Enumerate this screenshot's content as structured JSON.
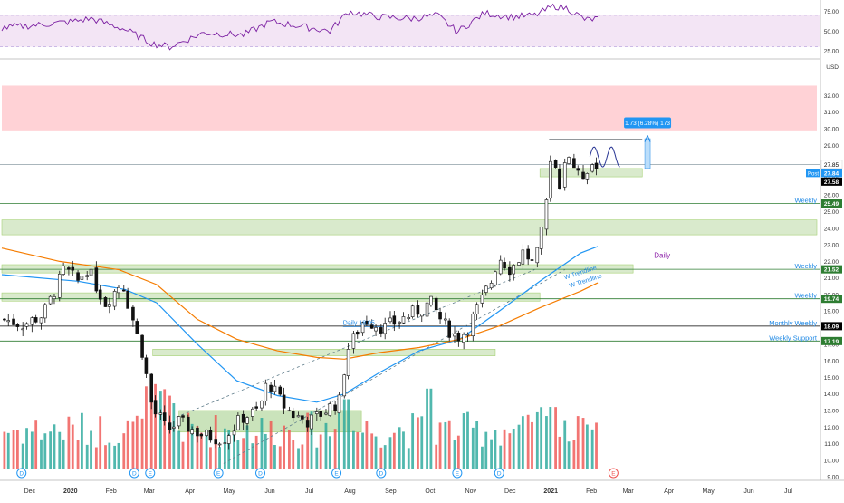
{
  "chart_data": {
    "type": "candlestick",
    "price_axis": {
      "unit_label": "USD",
      "ylim": [
        9.5,
        33.5
      ],
      "scale": "linear",
      "ticks": [
        "32.00",
        "31.00",
        "30.00",
        "29.00",
        "28.00",
        "27.00",
        "26.00",
        "25.00",
        "24.00",
        "23.00",
        "22.00",
        "21.00",
        "20.00",
        "19.00",
        "18.00",
        "17.00",
        "16.00",
        "15.00",
        "14.00",
        "13.00",
        "12.00",
        "11.00",
        "10.00",
        "9.00"
      ],
      "tick_values": [
        32,
        31,
        30,
        29,
        28,
        27,
        26,
        25,
        24,
        23,
        22,
        21,
        20,
        19,
        18,
        17,
        16,
        15,
        14,
        13,
        12,
        11,
        10,
        9
      ]
    },
    "rsi_axis": {
      "ticks": [
        "75.00",
        "50.00",
        "25.00"
      ],
      "tick_values": [
        75,
        50,
        25
      ],
      "ylim": [
        18,
        85
      ],
      "band": [
        30,
        70
      ]
    },
    "time_axis": {
      "start": "2019-11-18",
      "end": "2021-07-31",
      "labels": [
        "Dec",
        "2020",
        "Feb",
        "Mar",
        "Apr",
        "May",
        "Jun",
        "Jul",
        "Aug",
        "Sep",
        "Oct",
        "Nov",
        "Dec",
        "2021",
        "Feb",
        "Mar",
        "Apr",
        "May",
        "Jun",
        "Jul"
      ],
      "label_dates": [
        "2019-12-01",
        "2020-01-01",
        "2020-02-01",
        "2020-03-01",
        "2020-04-01",
        "2020-05-01",
        "2020-06-01",
        "2020-07-01",
        "2020-08-01",
        "2020-09-01",
        "2020-10-01",
        "2020-11-01",
        "2020-12-01",
        "2021-01-01",
        "2021-02-01",
        "2021-03-01",
        "2021-04-01",
        "2021-05-01",
        "2021-06-01",
        "2021-07-01"
      ],
      "bold_labels": [
        "2020",
        "2021"
      ]
    },
    "price_path": {
      "dates": [
        "2019-11-20",
        "2019-12-05",
        "2019-12-20",
        "2020-01-05",
        "2020-01-15",
        "2020-01-22",
        "2020-02-05",
        "2020-02-18",
        "2020-02-26",
        "2020-03-05",
        "2020-03-12",
        "2020-03-18",
        "2020-03-23",
        "2020-04-01",
        "2020-04-20",
        "2020-05-05",
        "2020-05-20",
        "2020-06-01",
        "2020-06-08",
        "2020-06-18",
        "2020-06-26",
        "2020-07-10",
        "2020-07-25",
        "2020-08-03",
        "2020-08-06",
        "2020-08-20",
        "2020-09-05",
        "2020-09-25",
        "2020-10-10",
        "2020-10-20",
        "2020-10-30",
        "2020-11-06",
        "2020-11-15",
        "2020-11-25",
        "2020-12-01",
        "2020-12-10",
        "2020-12-20",
        "2020-12-28",
        "2021-01-05",
        "2021-01-08",
        "2021-01-12",
        "2021-01-15",
        "2021-01-22",
        "2021-02-01",
        "2021-02-05",
        "2021-02-10",
        "2021-02-14"
      ],
      "values": [
        18.5,
        18.2,
        18.8,
        21.5,
        20.8,
        21.6,
        19.5,
        20.8,
        18.5,
        16.3,
        13.0,
        12.5,
        11.8,
        12.3,
        11.5,
        11.3,
        12.6,
        13.0,
        14.8,
        13.5,
        12.8,
        12.3,
        13.2,
        13.6,
        16.4,
        18.5,
        18.0,
        18.8,
        19.5,
        18.2,
        17.4,
        17.8,
        19.2,
        20.8,
        22.3,
        21.5,
        22.6,
        21.7,
        24.5,
        27.0,
        28.9,
        26.3,
        28.7,
        26.8,
        27.6,
        27.9,
        27.6
      ]
    },
    "series": [
      {
        "name": "",
        "kind": "ma-short",
        "color": "#2196f3",
        "dates": [
          "2019-11-18",
          "2020-01-15",
          "2020-02-20",
          "2020-03-15",
          "2020-04-15",
          "2020-05-15",
          "2020-06-15",
          "2020-07-15",
          "2020-08-05",
          "2020-09-01",
          "2020-10-01",
          "2020-11-01",
          "2020-12-01",
          "2021-01-01",
          "2021-02-01",
          "2021-02-14"
        ],
        "values": [
          21.2,
          20.8,
          20.3,
          19.5,
          17.0,
          14.8,
          13.9,
          13.5,
          14.0,
          15.3,
          16.6,
          17.3,
          19.0,
          20.8,
          22.5,
          22.9
        ]
      },
      {
        "name": "",
        "kind": "ma-long",
        "color": "#f57c00",
        "dates": [
          "2019-11-18",
          "2020-01-01",
          "2020-02-15",
          "2020-03-15",
          "2020-04-15",
          "2020-05-15",
          "2020-06-15",
          "2020-07-15",
          "2020-08-05",
          "2020-09-01",
          "2020-10-01",
          "2020-11-01",
          "2020-12-01",
          "2021-01-01",
          "2021-02-01",
          "2021-02-14"
        ],
        "values": [
          22.8,
          22.0,
          21.5,
          20.6,
          18.5,
          17.3,
          16.6,
          16.2,
          16.1,
          16.5,
          16.8,
          17.3,
          18.1,
          19.2,
          20.2,
          20.7
        ]
      },
      {
        "name": "",
        "kind": "rsi",
        "color": "#7b1fa2",
        "dates": [
          "2019-11-18",
          "2019-12-10",
          "2020-01-10",
          "2020-01-25",
          "2020-02-20",
          "2020-03-12",
          "2020-03-25",
          "2020-04-20",
          "2020-05-20",
          "2020-06-10",
          "2020-06-30",
          "2020-07-25",
          "2020-08-08",
          "2020-09-01",
          "2020-09-25",
          "2020-10-15",
          "2020-10-30",
          "2020-11-20",
          "2020-12-10",
          "2020-12-28",
          "2021-01-12",
          "2021-01-22",
          "2021-02-05",
          "2021-02-14"
        ],
        "values": [
          54,
          57,
          62,
          66,
          52,
          34,
          30,
          48,
          45,
          62,
          57,
          50,
          75,
          68,
          66,
          70,
          49,
          73,
          68,
          70,
          82,
          79,
          64,
          66
        ]
      }
    ],
    "horizontal_levels": [
      {
        "value": 25.49,
        "label": "Weekly",
        "color": "#2e7d32"
      },
      {
        "value": 21.52,
        "label": "Weekly",
        "color": "#2e7d32"
      },
      {
        "value": 19.74,
        "label": "Weekly",
        "color": "#2e7d32"
      },
      {
        "value": 18.09,
        "label": "Monthly Weekly",
        "color": "#000000"
      },
      {
        "value": 17.19,
        "label": "Weekly Support",
        "color": "#2e7d32"
      }
    ],
    "zones": [
      {
        "from": "2019-11-18",
        "to": "2021-07-31",
        "low": 29.9,
        "high": 32.6,
        "kind": "resistance",
        "color": "#ffcdd2"
      },
      {
        "from": "2019-11-18",
        "to": "2021-07-31",
        "low": 23.6,
        "high": 24.5,
        "kind": "support",
        "color": "#d5e8c7"
      },
      {
        "from": "2019-11-18",
        "to": "2021-03-13",
        "low": 21.3,
        "high": 21.8,
        "kind": "support",
        "color": "#d5e8c7"
      },
      {
        "from": "2019-11-18",
        "to": "2021-01-01",
        "low": 19.6,
        "high": 20.1,
        "kind": "support",
        "color": "#d5e8c7"
      },
      {
        "from": "2020-03-12",
        "to": "2020-11-28",
        "low": 16.3,
        "high": 16.7,
        "kind": "support",
        "color": "#d5e8c7"
      },
      {
        "from": "2020-04-01",
        "to": "2020-08-18",
        "low": 11.7,
        "high": 13.0,
        "kind": "support",
        "color": "#c5e0b4"
      },
      {
        "from": "2021-01-01",
        "to": "2021-03-20",
        "low": 27.1,
        "high": 27.6,
        "kind": "support",
        "color": "#d5e8c7"
      }
    ],
    "price_labels": [
      {
        "text": "27.85",
        "value": 27.85,
        "bg": "#ffffff",
        "fg": "#000000"
      },
      {
        "text": "27.84",
        "value": 27.84,
        "bg": "#2196f3",
        "fg": "#ffffff",
        "tag": "Post"
      },
      {
        "text": "27.58",
        "value": 27.58,
        "bg": "#000000",
        "fg": "#ffffff"
      },
      {
        "text": "25.49",
        "value": 25.49,
        "bg": "#2e7d32",
        "fg": "#ffffff"
      },
      {
        "text": "21.52",
        "value": 21.52,
        "bg": "#2e7d32",
        "fg": "#ffffff"
      },
      {
        "text": "19.74",
        "value": 19.74,
        "bg": "#2e7d32",
        "fg": "#ffffff"
      },
      {
        "text": "18.09",
        "value": 18.09,
        "bg": "#000000",
        "fg": "#ffffff"
      },
      {
        "text": "17.19",
        "value": 17.19,
        "bg": "#2e7d32",
        "fg": "#ffffff"
      }
    ],
    "annotations": {
      "projection_box": "1.73 (6.28%) 173",
      "daily_label": "Daily",
      "daily_level_label": "Daily 18.05",
      "trendline_label_1": "W Trendline",
      "trendline_label_2": "W Trendline",
      "post_tag": "Post",
      "dividend_marker": "D",
      "earnings_marker": "E"
    },
    "event_markers": [
      {
        "date": "2019-12-03",
        "kind": "D"
      },
      {
        "date": "2020-02-27",
        "kind": "D"
      },
      {
        "date": "2020-03-10",
        "kind": "E"
      },
      {
        "date": "2020-05-01",
        "kind": "E"
      },
      {
        "date": "2020-06-02",
        "kind": "D"
      },
      {
        "date": "2020-07-30",
        "kind": "E"
      },
      {
        "date": "2020-09-02",
        "kind": "D"
      },
      {
        "date": "2020-10-30",
        "kind": "E"
      },
      {
        "date": "2020-12-01",
        "kind": "D"
      },
      {
        "date": "2021-02-26",
        "kind": "E",
        "upcoming": true
      }
    ],
    "colors": {
      "up": "#26a69a",
      "down": "#ef5350",
      "candle": "#111111",
      "rsi_band": "#f3e5f5",
      "axis_text": "#333333",
      "grid": "#e0e3eb"
    }
  }
}
